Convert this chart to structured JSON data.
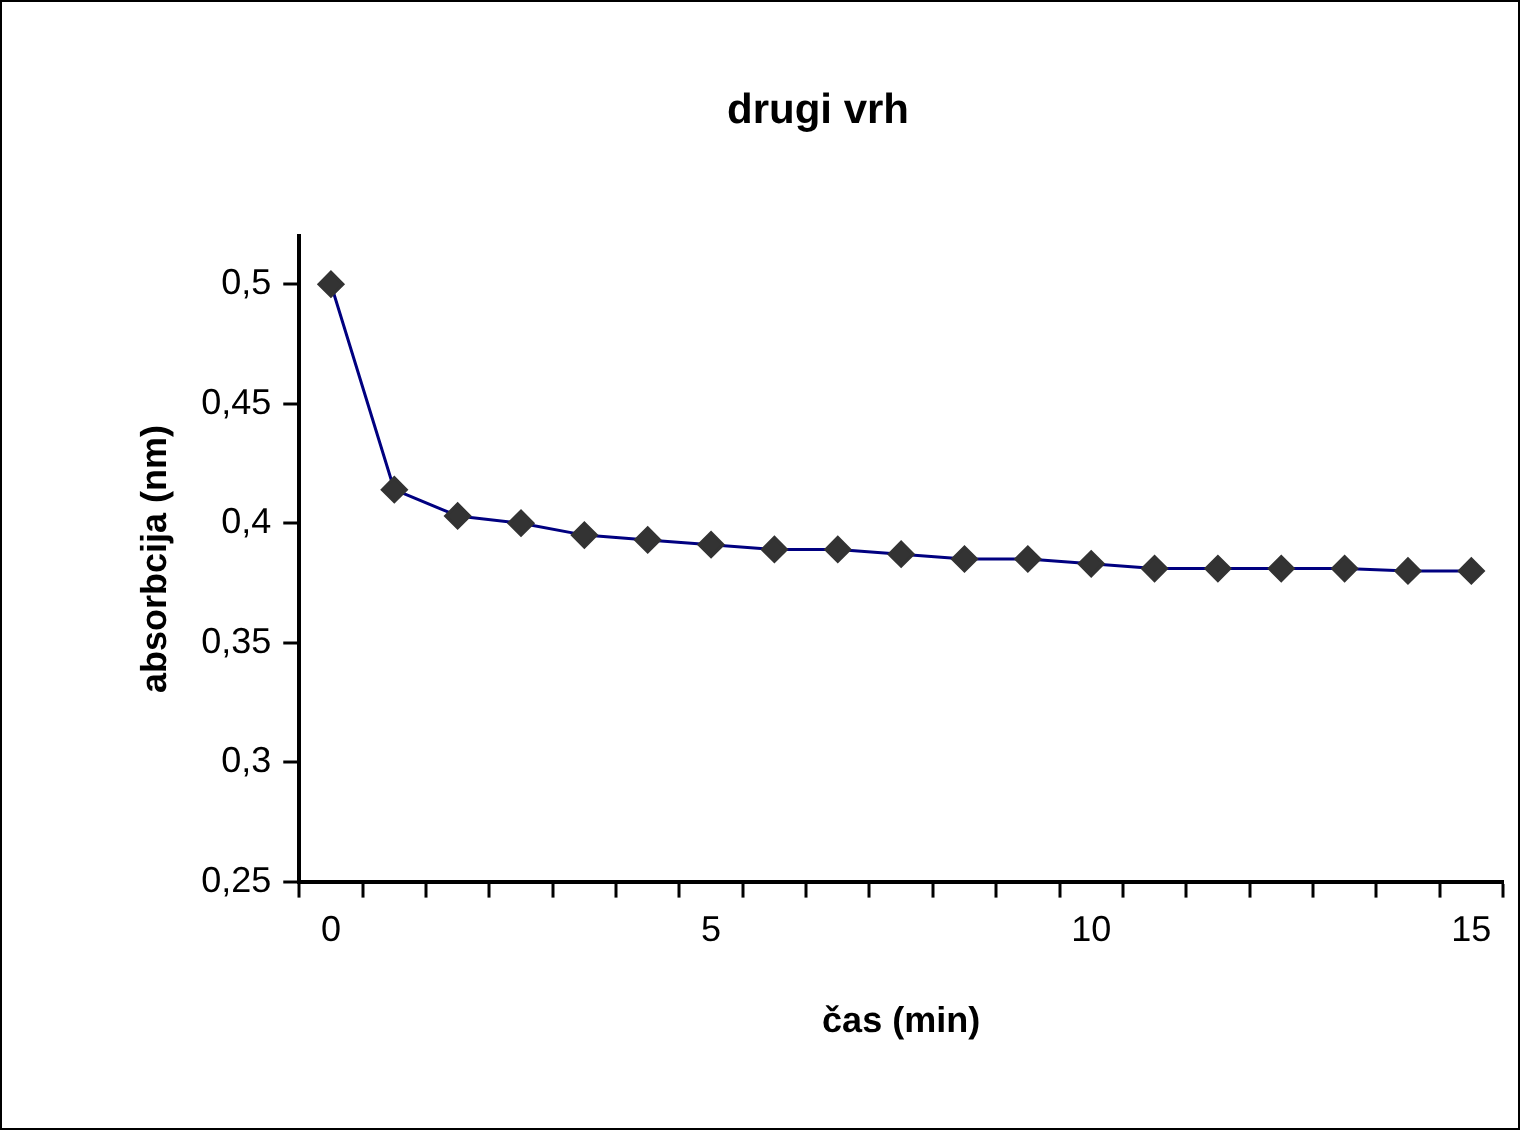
{
  "chart_data": {
    "type": "line",
    "title": "drugi vrh",
    "xlabel": "čas (min)",
    "ylabel": "absorbcija (nm)",
    "categories": [
      "0",
      null,
      null,
      null,
      null,
      null,
      "5",
      null,
      null,
      null,
      null,
      null,
      "10",
      null,
      null,
      null,
      null,
      null,
      "15"
    ],
    "series": [
      {
        "color": "#000080",
        "colors": [
          "#333333",
          "#333333",
          "#333333",
          "#333333",
          "#333333",
          "#333333",
          "#333333",
          "#333333",
          "#333333",
          "#333333",
          "#333333",
          "#333333",
          "#333333",
          "#333333",
          "#333333",
          "#333333",
          "#333333",
          "#333333",
          "#333333"
        ],
        "values": [
          0.5,
          0.414,
          0.403,
          0.4,
          0.395,
          0.393,
          0.391,
          0.389,
          0.389,
          0.387,
          0.385,
          0.385,
          0.383,
          0.381,
          0.381,
          0.381,
          0.381,
          0.38,
          0.38
        ]
      }
    ],
    "ylim": [
      0.25,
      0.52
    ],
    "yticks": [
      {
        "value": 0.25,
        "label": "0,25"
      },
      {
        "value": 0.3,
        "label": "0,3"
      },
      {
        "value": 0.35,
        "label": "0,35"
      },
      {
        "value": 0.4,
        "label": "0,4"
      },
      {
        "value": 0.45,
        "label": "0,45"
      },
      {
        "value": 0.5,
        "label": "0,5"
      }
    ],
    "grid": false,
    "legend": false,
    "marker": "diamond",
    "line_style": "solid"
  }
}
